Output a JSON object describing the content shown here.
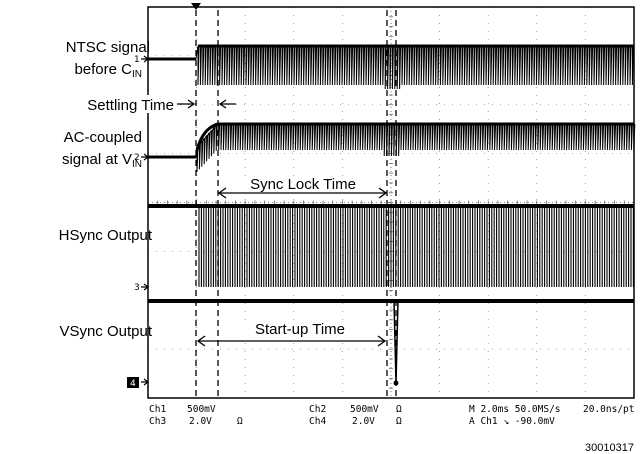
{
  "chart_data": {
    "type": "line",
    "title": "",
    "grid": true,
    "x_divisions": 10,
    "y_divisions": 8,
    "series": [
      {
        "name": "NTSC signal before C_IN",
        "channel_marker": "1"
      },
      {
        "name": "AC-coupled signal at V_IN",
        "channel_marker": "2"
      },
      {
        "name": "HSync Output",
        "channel_marker": "3"
      },
      {
        "name": "VSync Output",
        "channel_marker": "4"
      }
    ],
    "annotations": {
      "settling_time": "Settling Time",
      "sync_lock_time": "Sync Lock Time",
      "startup_time": "Start-up Time"
    },
    "signal_labels": {
      "ntsc_line1": "NTSC signal",
      "ntsc_line2_main": "before C",
      "ntsc_line2_sub": "IN",
      "ac_line1": "AC-coupled",
      "ac_line2_main": "signal at V",
      "ac_line2_sub": "IN",
      "hsync": "HSync Output",
      "vsync": "VSync Output"
    },
    "status": {
      "ch1": "Ch1",
      "ch1_scale": "500mV",
      "ch3": "Ch3",
      "ch3_scale": "2.0V",
      "ch3_coupling": "Ω",
      "ch2": "Ch2",
      "ch2_scale": "500mV",
      "ch2_coupling": "Ω",
      "ch4": "Ch4",
      "ch4_scale": "2.0V",
      "ch4_coupling": "Ω",
      "timebase": "M 2.0ms 50.0MS/s",
      "resolution": "20.0ns/pt",
      "trigger": "A  Ch1  ↘  -90.0mV"
    },
    "figure_id": "30010317"
  }
}
